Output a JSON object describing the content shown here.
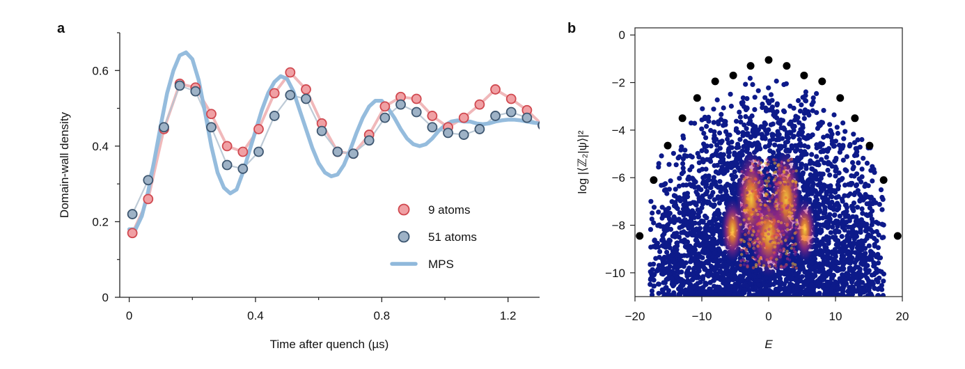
{
  "chart_data": [
    {
      "panel": "a",
      "type": "line",
      "xlabel": "Time after quench (µs)",
      "ylabel": "Domain-wall density",
      "xlim": [
        -0.03,
        1.3
      ],
      "ylim": [
        0,
        0.7
      ],
      "xticks": [
        {
          "v": 0,
          "label": "0"
        },
        {
          "v": 0.4,
          "label": "0.4"
        },
        {
          "v": 0.8,
          "label": "0.8"
        },
        {
          "v": 1.2,
          "label": "1.2"
        }
      ],
      "yticks": [
        {
          "v": 0,
          "label": "0"
        },
        {
          "v": 0.2,
          "label": "0.2"
        },
        {
          "v": 0.4,
          "label": "0.4"
        },
        {
          "v": 0.6,
          "label": "0.6"
        }
      ],
      "series": [
        {
          "name": "9 atoms",
          "style": "markers+line",
          "marker_color": "#f0a0a4",
          "edge_color": "#d0484f",
          "line_color": "#eeb0b3",
          "x": [
            0.01,
            0.06,
            0.11,
            0.16,
            0.21,
            0.26,
            0.31,
            0.36,
            0.41,
            0.46,
            0.51,
            0.56,
            0.61,
            0.66,
            0.71,
            0.76,
            0.81,
            0.86,
            0.91,
            0.96,
            1.01,
            1.06,
            1.11,
            1.16,
            1.21,
            1.26,
            1.31
          ],
          "y": [
            0.17,
            0.26,
            0.445,
            0.565,
            0.555,
            0.485,
            0.4,
            0.385,
            0.445,
            0.54,
            0.595,
            0.55,
            0.46,
            0.385,
            0.38,
            0.43,
            0.505,
            0.53,
            0.525,
            0.48,
            0.45,
            0.475,
            0.51,
            0.55,
            0.525,
            0.495,
            0.455
          ]
        },
        {
          "name": "51 atoms",
          "style": "markers+line",
          "marker_color": "#9eb2c6",
          "edge_color": "#3d5670",
          "line_color": "#b6c4d2",
          "x": [
            0.01,
            0.06,
            0.11,
            0.16,
            0.21,
            0.26,
            0.31,
            0.36,
            0.41,
            0.46,
            0.51,
            0.56,
            0.61,
            0.66,
            0.71,
            0.76,
            0.81,
            0.86,
            0.91,
            0.96,
            1.01,
            1.06,
            1.11,
            1.16,
            1.21,
            1.26,
            1.31
          ],
          "y": [
            0.22,
            0.31,
            0.45,
            0.56,
            0.545,
            0.45,
            0.35,
            0.34,
            0.385,
            0.48,
            0.535,
            0.525,
            0.44,
            0.385,
            0.38,
            0.415,
            0.475,
            0.51,
            0.49,
            0.45,
            0.435,
            0.43,
            0.445,
            0.48,
            0.49,
            0.475,
            0.455
          ]
        },
        {
          "name": "MPS",
          "style": "line",
          "line_color": "#8fb8db",
          "x": [
            0.0,
            0.02,
            0.04,
            0.06,
            0.08,
            0.1,
            0.12,
            0.14,
            0.16,
            0.18,
            0.2,
            0.22,
            0.24,
            0.26,
            0.28,
            0.3,
            0.32,
            0.34,
            0.36,
            0.38,
            0.4,
            0.42,
            0.44,
            0.46,
            0.48,
            0.5,
            0.52,
            0.54,
            0.56,
            0.58,
            0.6,
            0.62,
            0.64,
            0.66,
            0.68,
            0.7,
            0.72,
            0.74,
            0.76,
            0.78,
            0.8,
            0.82,
            0.84,
            0.86,
            0.88,
            0.9,
            0.92,
            0.94,
            0.96,
            0.98,
            1.0,
            1.02,
            1.04,
            1.06,
            1.08,
            1.1,
            1.12,
            1.14,
            1.16,
            1.18,
            1.2,
            1.22,
            1.24,
            1.26,
            1.28,
            1.3
          ],
          "y": [
            0.18,
            0.18,
            0.215,
            0.28,
            0.365,
            0.455,
            0.54,
            0.6,
            0.64,
            0.648,
            0.63,
            0.575,
            0.49,
            0.4,
            0.33,
            0.29,
            0.275,
            0.285,
            0.33,
            0.385,
            0.44,
            0.495,
            0.54,
            0.57,
            0.585,
            0.578,
            0.545,
            0.495,
            0.445,
            0.395,
            0.355,
            0.33,
            0.32,
            0.325,
            0.35,
            0.39,
            0.435,
            0.475,
            0.505,
            0.52,
            0.52,
            0.5,
            0.475,
            0.445,
            0.42,
            0.405,
            0.4,
            0.405,
            0.42,
            0.44,
            0.455,
            0.465,
            0.468,
            0.465,
            0.465,
            0.46,
            0.458,
            0.46,
            0.465,
            0.468,
            0.47,
            0.47,
            0.468,
            0.465,
            0.462,
            0.46
          ]
        }
      ],
      "legend": {
        "placement": "bottom-right",
        "entries": [
          "9 atoms",
          "51 atoms",
          "MPS"
        ]
      }
    },
    {
      "panel": "b",
      "type": "scatter",
      "xlabel": "E",
      "ylabel": "log |⟨ℤ₂|ψ⟩|²",
      "xlim": [
        -20,
        20
      ],
      "ylim": [
        -11,
        0.3
      ],
      "xticks": [
        {
          "v": -20,
          "label": "−20"
        },
        {
          "v": -10,
          "label": "−10"
        },
        {
          "v": 0,
          "label": "0"
        },
        {
          "v": 10,
          "label": "10"
        },
        {
          "v": 20,
          "label": "20"
        }
      ],
      "yticks": [
        {
          "v": 0,
          "label": "0"
        },
        {
          "v": -2,
          "label": "−2"
        },
        {
          "v": -4,
          "label": "−4"
        },
        {
          "v": -6,
          "label": "−6"
        },
        {
          "v": -8,
          "label": "−8"
        },
        {
          "v": -10,
          "label": "−10"
        }
      ],
      "colors": {
        "cloud": "#0d1a8a",
        "highlight": "#000000"
      },
      "highlight_points": {
        "E": [
          -19.3,
          -17.2,
          -15.1,
          -12.9,
          -10.7,
          -8.0,
          -5.3,
          -2.7,
          0.0,
          2.7,
          5.3,
          8.0,
          10.7,
          12.9,
          15.1,
          17.2,
          19.3
        ],
        "logp": [
          -8.45,
          -6.1,
          -4.65,
          -3.5,
          -2.65,
          -1.95,
          -1.7,
          -1.3,
          -1.05,
          -1.3,
          -1.7,
          -1.95,
          -2.65,
          -3.5,
          -4.65,
          -6.1,
          -8.45
        ]
      }
    }
  ],
  "panels": {
    "a": {
      "letter": "a"
    },
    "b": {
      "letter": "b"
    }
  }
}
